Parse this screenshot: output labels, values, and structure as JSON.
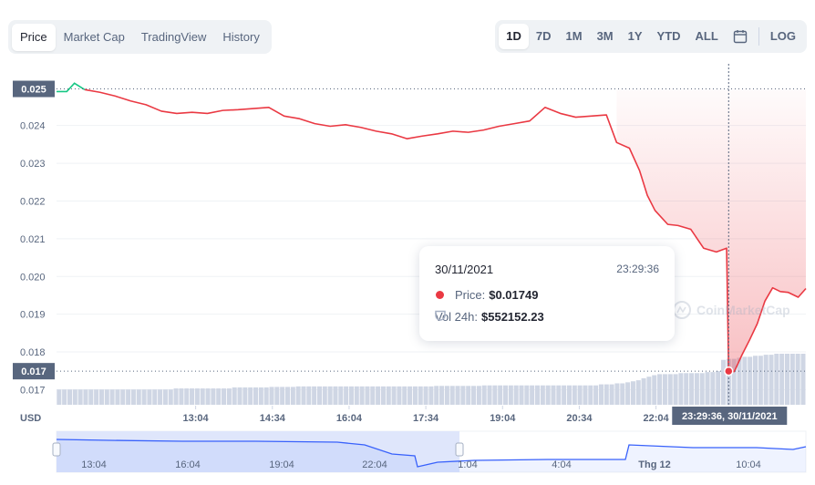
{
  "tabs": {
    "items": [
      "Price",
      "Market Cap",
      "TradingView",
      "History"
    ],
    "active": "Price"
  },
  "ranges": {
    "items": [
      "1D",
      "7D",
      "1M",
      "3M",
      "1Y",
      "YTD",
      "ALL"
    ],
    "active": "1D",
    "calendar_icon": "calendar-icon",
    "log_label": "LOG"
  },
  "colors": {
    "price_line_down": "#ea3943",
    "price_line_up": "#16c784",
    "volume_bars": "#cfd6e4",
    "navigator_fill": "#dfe6fb",
    "navigator_line": "#3861fb"
  },
  "watermark": "CoinMarketCap",
  "currency_label": "USD",
  "crosshair_time_label": "23:29:36, 30/11/2021",
  "tooltip": {
    "date": "30/11/2021",
    "time": "23:29:36",
    "price_label": "Price:",
    "price_value": "$0.01749",
    "vol_label": "Vol 24h:",
    "vol_value": "$552152.23"
  },
  "chart_data": {
    "type": "line",
    "ylabel": "USD",
    "ylim": [
      0.0166,
      0.0252
    ],
    "y_ticks": [
      "0.024",
      "0.023",
      "0.022",
      "0.021",
      "0.020",
      "0.019",
      "0.018",
      "0.017"
    ],
    "x_ticks": [
      "13:04",
      "14:34",
      "16:04",
      "17:34",
      "19:04",
      "20:34",
      "22:04"
    ],
    "high_label": "0.025",
    "low_label": "0.017",
    "grid": true,
    "series": [
      {
        "x_hours": [
          10.35,
          10.55,
          10.7,
          10.9,
          11.2,
          11.5,
          11.8,
          12.1,
          12.4,
          12.7,
          13.0,
          13.3,
          13.6,
          13.9,
          14.2,
          14.5,
          14.8,
          15.1,
          15.4,
          15.7,
          16.0,
          16.3,
          16.6,
          16.9,
          17.2,
          17.5,
          17.8,
          18.1,
          18.4,
          18.7,
          19.0,
          19.3,
          19.6,
          19.9,
          20.2,
          20.5,
          20.8,
          21.1,
          21.3,
          21.55,
          21.75,
          21.9,
          22.05,
          22.3,
          22.5,
          22.75,
          23.0,
          23.25,
          23.45,
          23.49,
          23.6,
          23.75,
          23.9,
          24.05,
          24.2,
          24.35,
          24.5,
          24.65,
          24.85,
          25.0
        ],
        "price": [
          0.0249,
          0.0249,
          0.02512,
          0.02495,
          0.02488,
          0.02478,
          0.02465,
          0.02455,
          0.02438,
          0.02432,
          0.02435,
          0.02432,
          0.0244,
          0.02442,
          0.02445,
          0.02448,
          0.02425,
          0.02418,
          0.02405,
          0.02398,
          0.02402,
          0.02395,
          0.02385,
          0.02378,
          0.02365,
          0.02372,
          0.02378,
          0.02385,
          0.02382,
          0.02388,
          0.02398,
          0.02405,
          0.02412,
          0.02448,
          0.02432,
          0.02422,
          0.02425,
          0.02428,
          0.02355,
          0.0234,
          0.0228,
          0.02215,
          0.02175,
          0.02138,
          0.02135,
          0.02125,
          0.02075,
          0.02065,
          0.02075,
          0.01749,
          0.01748,
          0.01792,
          0.01832,
          0.01875,
          0.01935,
          0.0197,
          0.0196,
          0.01958,
          0.01945,
          0.01968
        ]
      }
    ],
    "volume": [
      0.3,
      0.3,
      0.3,
      0.3,
      0.3,
      0.3,
      0.3,
      0.3,
      0.3,
      0.3,
      0.3,
      0.3,
      0.3,
      0.3,
      0.3,
      0.3,
      0.3,
      0.3,
      0.3,
      0.3,
      0.3,
      0.3,
      0.32,
      0.32,
      0.32,
      0.32,
      0.32,
      0.32,
      0.32,
      0.32,
      0.32,
      0.32,
      0.32,
      0.34,
      0.34,
      0.34,
      0.34,
      0.34,
      0.34,
      0.34,
      0.35,
      0.35,
      0.35,
      0.35,
      0.35,
      0.36,
      0.36,
      0.36,
      0.36,
      0.36,
      0.36,
      0.36,
      0.36,
      0.36,
      0.36,
      0.36,
      0.36,
      0.36,
      0.36,
      0.36,
      0.36,
      0.36,
      0.36,
      0.36,
      0.36,
      0.36,
      0.36,
      0.36,
      0.36,
      0.36,
      0.36,
      0.37,
      0.37,
      0.37,
      0.37,
      0.37,
      0.37,
      0.37,
      0.37,
      0.37,
      0.38,
      0.38,
      0.38,
      0.38,
      0.38,
      0.38,
      0.38,
      0.38,
      0.38,
      0.38,
      0.38,
      0.38,
      0.38,
      0.38,
      0.38,
      0.38,
      0.38,
      0.38,
      0.38,
      0.38,
      0.38,
      0.38,
      0.4,
      0.4,
      0.4,
      0.42,
      0.42,
      0.44,
      0.46,
      0.48,
      0.52,
      0.55,
      0.58,
      0.6,
      0.6,
      0.6,
      0.6,
      0.62,
      0.62,
      0.62,
      0.62,
      0.62,
      0.64,
      0.64,
      0.66,
      0.88,
      0.9,
      0.9,
      0.92,
      0.94,
      0.94,
      0.96,
      0.96,
      0.98,
      0.98,
      1.0,
      1.0,
      1.0,
      1.0,
      1.0,
      1.0
    ],
    "navigator": {
      "x_ticks": [
        "13:04",
        "16:04",
        "19:04",
        "22:04",
        "1:04",
        "4:04",
        "Thg 12",
        "10:04"
      ]
    }
  }
}
